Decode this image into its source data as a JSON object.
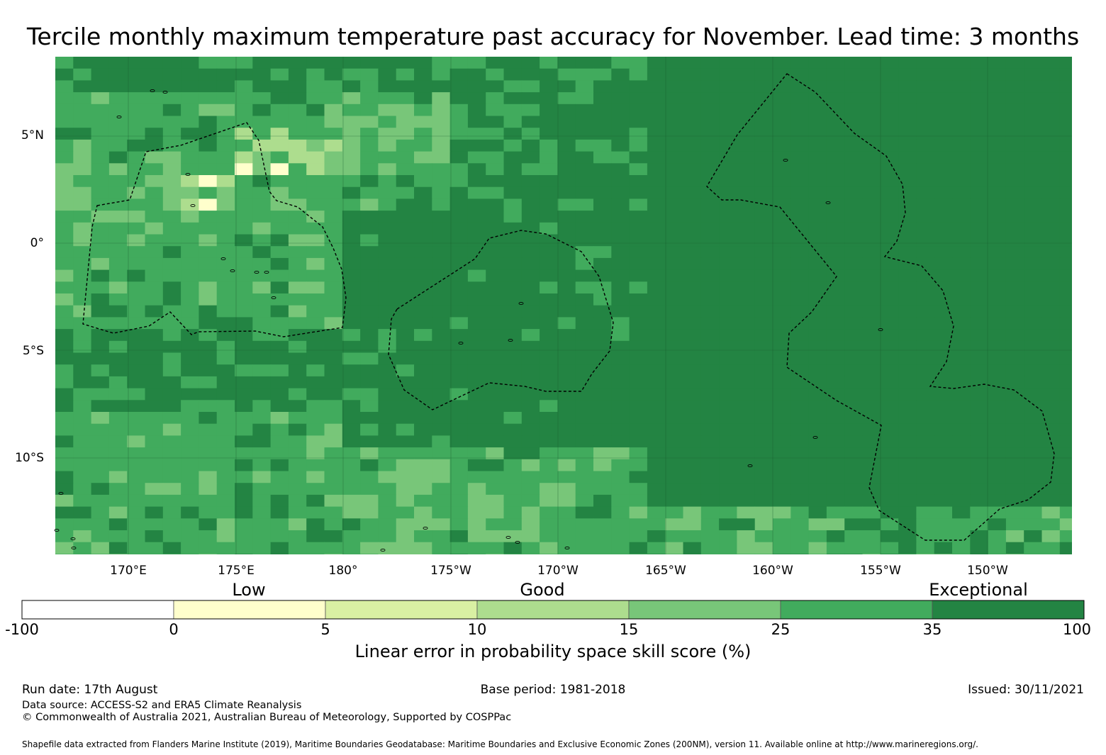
{
  "title": "Tercile monthly maximum temperature past accuracy for November. Lead time: 3 months",
  "lat_labels": [
    "5°N",
    "0°",
    "5°S",
    "10°S"
  ],
  "lon_labels": [
    "170°E",
    "175°E",
    "180°",
    "175°W",
    "170°W",
    "165°W",
    "160°W",
    "155°W",
    "150°W"
  ],
  "colorbar": {
    "category_labels": [
      "Low",
      "Good",
      "Exceptional"
    ],
    "tick_labels": [
      "-100",
      "0",
      "5",
      "10",
      "15",
      "25",
      "35",
      "100"
    ],
    "colors": [
      "#ffffff",
      "#ffffcc",
      "#d9f0a3",
      "#addd8e",
      "#78c679",
      "#41ab5d",
      "#238443"
    ],
    "label": "Linear error in probability space skill score (%)"
  },
  "footer": {
    "run_date": "Run date: 17th August",
    "base_period": "Base period: 1981-2018",
    "issued": "Issued: 30/11/2021",
    "data_source": "Data source: ACCESS-S2 and ERA5 Climate Reanalysis",
    "copyright": "© Commonwealth of Australia 2021, Australian Bureau of Meteorology, Supported by COSPPac",
    "shapefile": "Shapefile data extracted from Flanders Marine Institute (2019), Maritime Boundaries Geodatabase: Maritime Boundaries and Exclusive Economic Zones (200NM), version 11. Available online at http://www.marineregions.org/."
  }
}
